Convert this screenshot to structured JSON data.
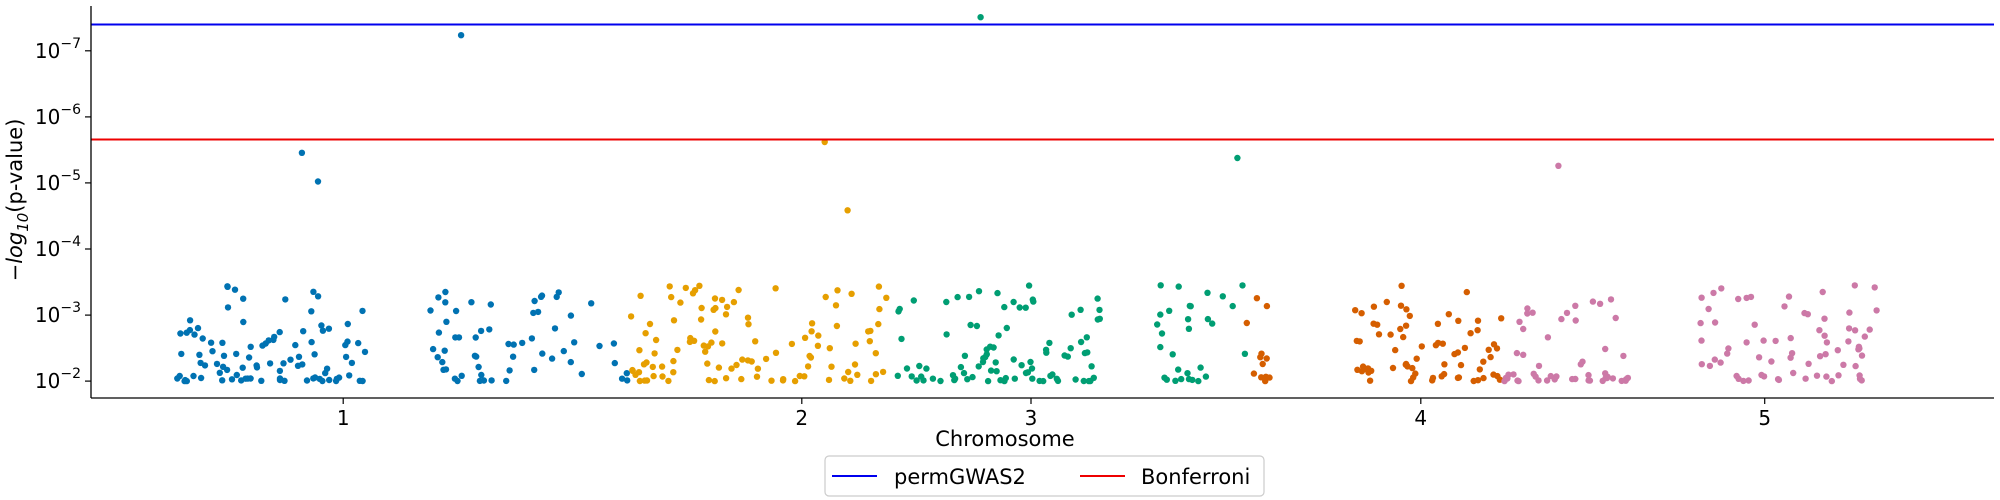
{
  "chart_data": {
    "type": "scatter",
    "title": "",
    "xlabel": "Chromosome",
    "ylabel_parts": {
      "pre": "−",
      "log": "log",
      "sub": "10",
      "post": "(p-value)"
    },
    "y_scale": "log",
    "y_axis_direction": "inverted",
    "yticks": [
      {
        "value": 1e-07,
        "base": "10",
        "exp": "−7"
      },
      {
        "value": 1e-06,
        "base": "10",
        "exp": "−6"
      },
      {
        "value": 1e-05,
        "base": "10",
        "exp": "−5"
      },
      {
        "value": 0.0001,
        "base": "10",
        "exp": "−4"
      },
      {
        "value": 0.001,
        "base": "10",
        "exp": "−3"
      },
      {
        "value": 0.01,
        "base": "10",
        "exp": "−2"
      }
    ],
    "ylim": [
      0.018,
      2.1e-08
    ],
    "xlim": [
      0,
      4.15
    ],
    "xticks": [
      {
        "value": 0.55,
        "label": "1"
      },
      {
        "value": 1.55,
        "label": "2"
      },
      {
        "value": 2.05,
        "label": "3"
      },
      {
        "value": 2.9,
        "label": "4"
      },
      {
        "value": 3.65,
        "label": "5"
      }
    ],
    "grid": false,
    "legend_position": "bottom-center",
    "thresholds": [
      {
        "name": "permGWAS2",
        "value": 4e-08,
        "color": "#0000ee"
      },
      {
        "name": "Bonferroni",
        "value": 2.2e-06,
        "color": "#ee0000"
      }
    ],
    "colors": [
      "#0072b2",
      "#e69f00",
      "#009e73",
      "#d55e00",
      "#cc79a7"
    ],
    "significant_points": [
      {
        "x": 0.807,
        "y": 5.8e-08,
        "color": 0
      },
      {
        "x": 1.94,
        "y": 3.1e-08,
        "color": 2
      },
      {
        "x": 1.6,
        "y": 2.4e-06,
        "color": 1
      },
      {
        "x": 0.46,
        "y": 3.5e-06,
        "color": 0
      },
      {
        "x": 0.495,
        "y": 9.5e-06,
        "color": 0
      },
      {
        "x": 2.5,
        "y": 4.2e-06,
        "color": 2
      },
      {
        "x": 3.2,
        "y": 5.5e-06,
        "color": 4
      },
      {
        "x": 1.65,
        "y": 2.6e-05,
        "color": 1
      }
    ],
    "segments": [
      {
        "color": 0,
        "x0": 0.18,
        "x1": 0.6,
        "n": 95,
        "seed": 11
      },
      {
        "color": 0,
        "x0": 0.74,
        "x1": 1.17,
        "n": 60,
        "seed": 23
      },
      {
        "color": 1,
        "x0": 1.17,
        "x1": 1.75,
        "n": 110,
        "seed": 37
      },
      {
        "color": 2,
        "x0": 1.75,
        "x1": 2.2,
        "n": 90,
        "seed": 51
      },
      {
        "color": 2,
        "x0": 2.32,
        "x1": 2.52,
        "n": 30,
        "seed": 63
      },
      {
        "color": 3,
        "x0": 2.52,
        "x1": 2.58,
        "n": 12,
        "seed": 77
      },
      {
        "color": 3,
        "x0": 2.75,
        "x1": 3.08,
        "n": 70,
        "seed": 89
      },
      {
        "color": 4,
        "x0": 3.08,
        "x1": 3.36,
        "n": 50,
        "seed": 97
      },
      {
        "color": 4,
        "x0": 3.5,
        "x1": 3.9,
        "n": 70,
        "seed": 103
      }
    ]
  }
}
